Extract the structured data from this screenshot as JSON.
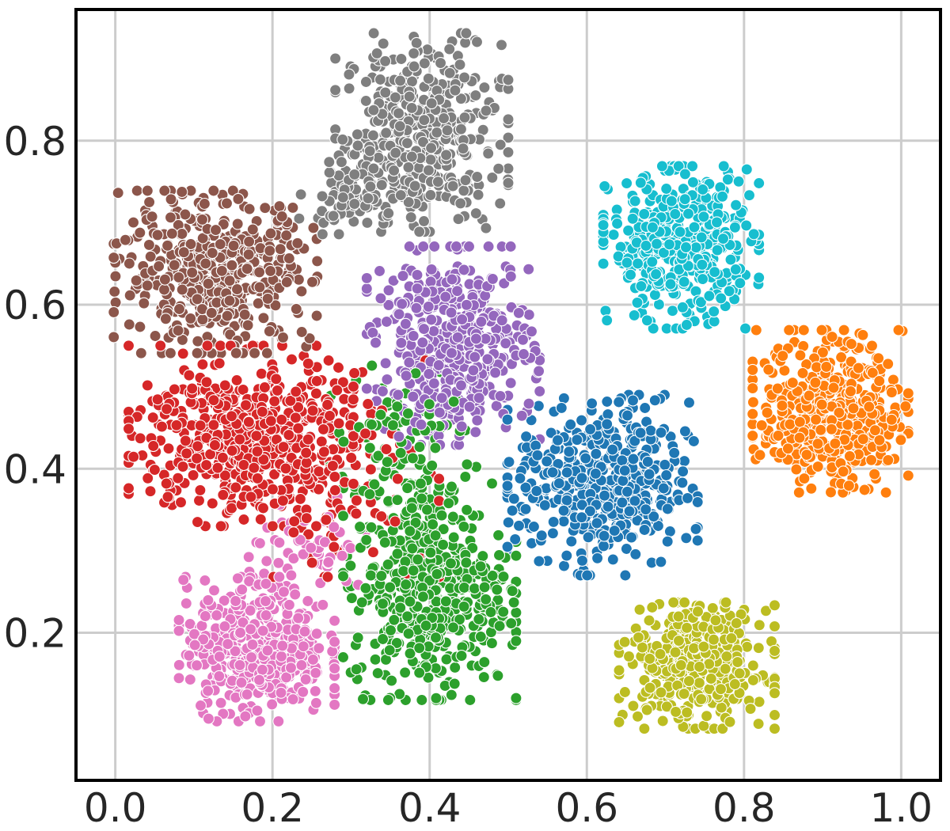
{
  "chart_data": {
    "type": "scatter",
    "title": "",
    "xlabel": "",
    "ylabel": "",
    "xlim": [
      -0.05,
      1.05
    ],
    "ylim": [
      0.02,
      0.96
    ],
    "grid": true,
    "legend": "none",
    "x_ticks": [
      {
        "value": 0.0,
        "label": "0.0"
      },
      {
        "value": 0.2,
        "label": "0.2"
      },
      {
        "value": 0.4,
        "label": "0.4"
      },
      {
        "value": 0.6,
        "label": "0.6"
      },
      {
        "value": 0.8,
        "label": "0.8"
      },
      {
        "value": 1.0,
        "label": "1.0"
      }
    ],
    "y_ticks": [
      {
        "value": 0.2,
        "label": "0.2"
      },
      {
        "value": 0.4,
        "label": "0.4"
      },
      {
        "value": 0.6,
        "label": "0.6"
      },
      {
        "value": 0.8,
        "label": "0.8"
      }
    ],
    "clusters": [
      {
        "color": "#7f7f7f",
        "count": 420,
        "center": [
          0.39,
          0.81
        ],
        "spread": [
          0.05,
          0.055
        ]
      },
      {
        "color": "#7f7f7f",
        "count": 90,
        "center": [
          0.3,
          0.73
        ],
        "spread": [
          0.03,
          0.02
        ]
      },
      {
        "color": "#8c564b",
        "count": 470,
        "center": [
          0.13,
          0.64
        ],
        "spread": [
          0.06,
          0.045
        ]
      },
      {
        "color": "#17becf",
        "count": 440,
        "center": [
          0.72,
          0.67
        ],
        "spread": [
          0.045,
          0.045
        ]
      },
      {
        "color": "#9467bd",
        "count": 460,
        "center": [
          0.43,
          0.55
        ],
        "spread": [
          0.05,
          0.055
        ]
      },
      {
        "color": "#d62728",
        "count": 520,
        "center": [
          0.16,
          0.44
        ],
        "spread": [
          0.065,
          0.05
        ]
      },
      {
        "color": "#d62728",
        "count": 130,
        "center": [
          0.28,
          0.4
        ],
        "spread": [
          0.06,
          0.06
        ]
      },
      {
        "color": "#ff7f0e",
        "count": 450,
        "center": [
          0.91,
          0.47
        ],
        "spread": [
          0.045,
          0.045
        ]
      },
      {
        "color": "#1f77b4",
        "count": 480,
        "center": [
          0.62,
          0.38
        ],
        "spread": [
          0.055,
          0.05
        ]
      },
      {
        "color": "#2ca02c",
        "count": 480,
        "center": [
          0.4,
          0.25
        ],
        "spread": [
          0.05,
          0.06
        ]
      },
      {
        "color": "#2ca02c",
        "count": 110,
        "center": [
          0.36,
          0.42
        ],
        "spread": [
          0.05,
          0.05
        ]
      },
      {
        "color": "#e377c2",
        "count": 440,
        "center": [
          0.18,
          0.18
        ],
        "spread": [
          0.045,
          0.04
        ]
      },
      {
        "color": "#e377c2",
        "count": 60,
        "center": [
          0.25,
          0.3
        ],
        "spread": [
          0.04,
          0.03
        ]
      },
      {
        "color": "#bcbd22",
        "count": 430,
        "center": [
          0.74,
          0.16
        ],
        "spread": [
          0.045,
          0.035
        ]
      }
    ]
  }
}
